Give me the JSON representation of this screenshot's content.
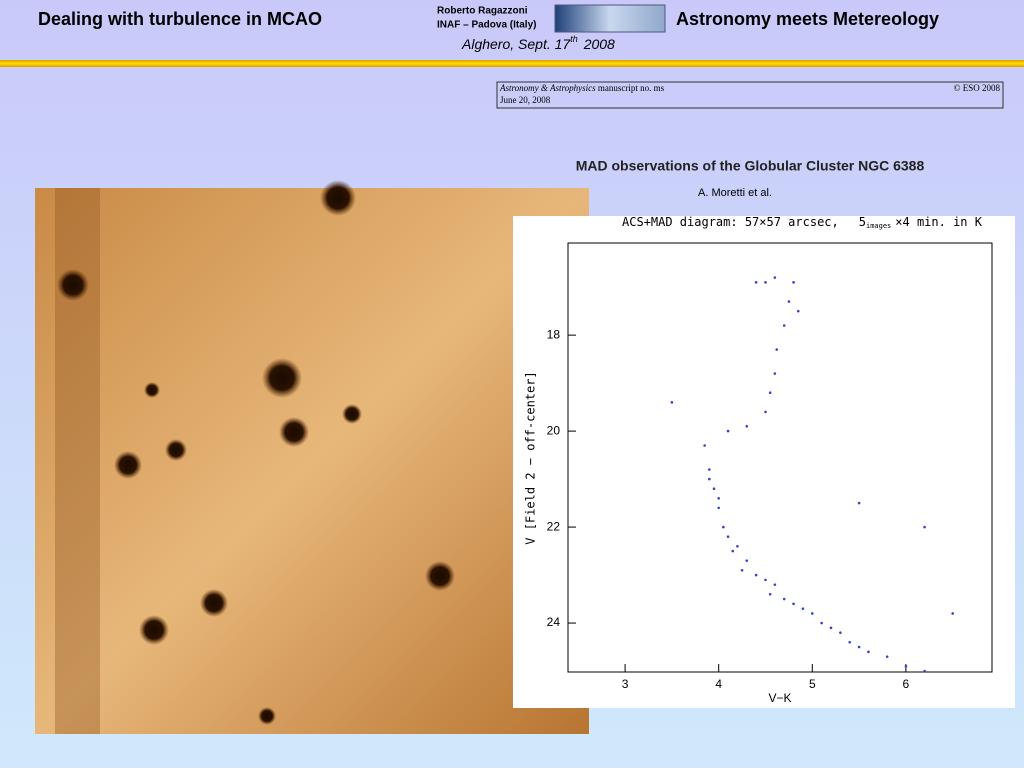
{
  "header": {
    "title": "Dealing with turbulence in MCAO",
    "author": "Roberto Ragazzoni",
    "affiliation": "INAF – Padova (Italy)",
    "right_title": "Astronomy meets Metereology",
    "place_date": "Alghero, Sept. 17",
    "date_sup": "th",
    "year": "2008"
  },
  "paper": {
    "journal": "Astronomy & Astrophysics",
    "manuscript": "manuscript no. ms",
    "copyright": "© ESO 2008",
    "date": "June 20, 2008",
    "title": "MAD observations of the Globular Cluster NGC 6388",
    "authors": "A. Moretti et al."
  },
  "plot": {
    "type": "scatter",
    "title": "ACS+MAD diagram: 57×57 arcsec,",
    "title_n": "5",
    "title_sub": "images",
    "title_rest": "×4 min. in K",
    "xlabel": "V−K",
    "ylabel": "V [Field 2 − off-center]",
    "xlim": [
      2.39,
      6.92
    ],
    "ylim": [
      25.02,
      16.08
    ],
    "xticks": [
      3,
      4,
      5,
      6
    ],
    "yticks": [
      18,
      20,
      22,
      24
    ],
    "color": "#3344cc",
    "points": {
      "x": [
        3.85,
        3.9,
        3.95,
        4.0,
        3.9,
        4.05,
        4.0,
        4.1,
        4.15,
        4.2,
        4.3,
        4.25,
        4.4,
        4.5,
        4.6,
        4.55,
        4.7,
        4.8,
        4.9,
        5.0,
        5.1,
        5.2,
        5.3,
        5.4,
        5.5,
        5.6,
        5.8,
        6.0,
        6.2,
        4.1,
        4.3,
        4.5,
        4.55,
        4.6,
        4.62,
        4.7,
        4.75,
        4.4,
        4.5,
        4.6,
        4.8,
        4.85,
        5.5,
        6.2,
        3.5,
        6.5
      ],
      "y": [
        20.3,
        20.8,
        21.2,
        21.6,
        21.0,
        22.0,
        21.4,
        22.2,
        22.5,
        22.4,
        22.7,
        22.9,
        23.0,
        23.1,
        23.2,
        23.4,
        23.5,
        23.6,
        23.7,
        23.8,
        24.0,
        24.1,
        24.2,
        24.4,
        24.5,
        24.6,
        24.7,
        24.9,
        25.0,
        20.0,
        19.9,
        19.6,
        19.2,
        18.8,
        18.3,
        17.8,
        17.3,
        16.9,
        16.9,
        16.8,
        16.9,
        17.5,
        21.5,
        22.0,
        19.4,
        23.8
      ]
    }
  }
}
